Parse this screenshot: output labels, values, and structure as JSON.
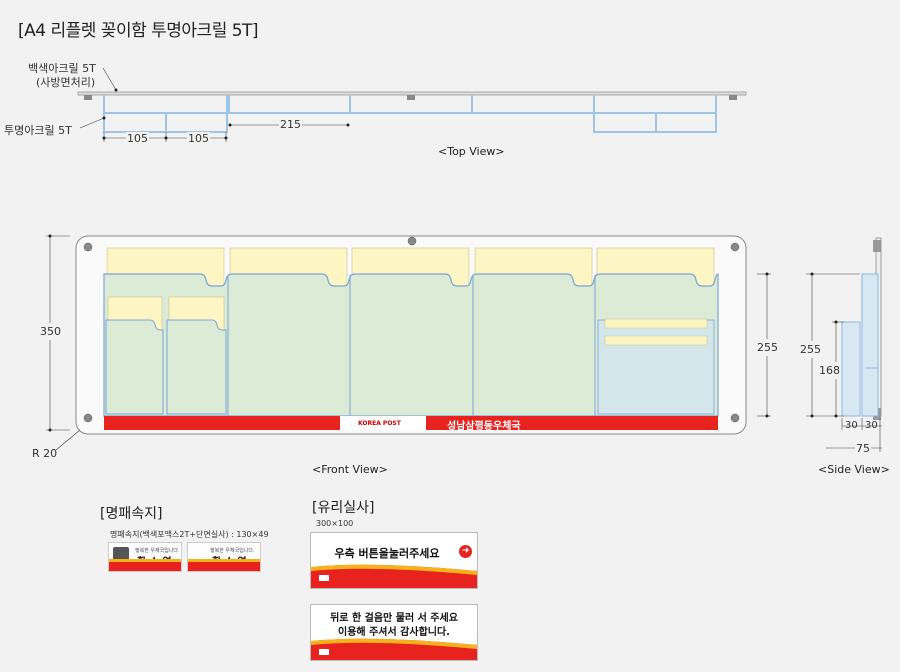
{
  "title": "[A4 리플렛 꽂이함 투명아크릴 5T]",
  "top_view": {
    "label_white": "백색아크릴 5T",
    "label_white_sub": "(사방면처리)",
    "label_clear": "투명아크릴 5T",
    "dim_a": "105",
    "dim_b": "105",
    "dim_c": "215",
    "caption": "<Top View>"
  },
  "front_view": {
    "dim_height": "350",
    "dim_pocket": "255",
    "radius": "R 20",
    "logo": "KOREA POST",
    "office_name": "성남삼평동우체국",
    "caption": "<Front View>"
  },
  "side_view": {
    "dim_255": "255",
    "dim_168": "168",
    "dim_30a": "30",
    "dim_30b": "30",
    "dim_75": "75",
    "caption": "<Side View>"
  },
  "nameplate": {
    "heading": "[명패속지]",
    "spec": "명패속지(백색포맥스2T+단면실사) : 130×49",
    "cards": [
      {
        "sub": "행복한 우체국입니다.",
        "name": "황 소 연"
      },
      {
        "sub": "행복한 우체국입니다.",
        "name": "황 소 연"
      }
    ]
  },
  "glass": {
    "heading": "[유리실사]",
    "size": "300×100",
    "sign1": "우측 버튼을눌러주세요",
    "sign2_line1": "뒤로 한 걸음만 물러 서 주세요",
    "sign2_line2": "이용해 주셔서 감사합니다."
  },
  "colors": {
    "red": "#e8231f",
    "pocket_fill": "#dcebd6",
    "header_fill": "#fdf5c4",
    "acrylic_line": "#8fb8e0"
  }
}
